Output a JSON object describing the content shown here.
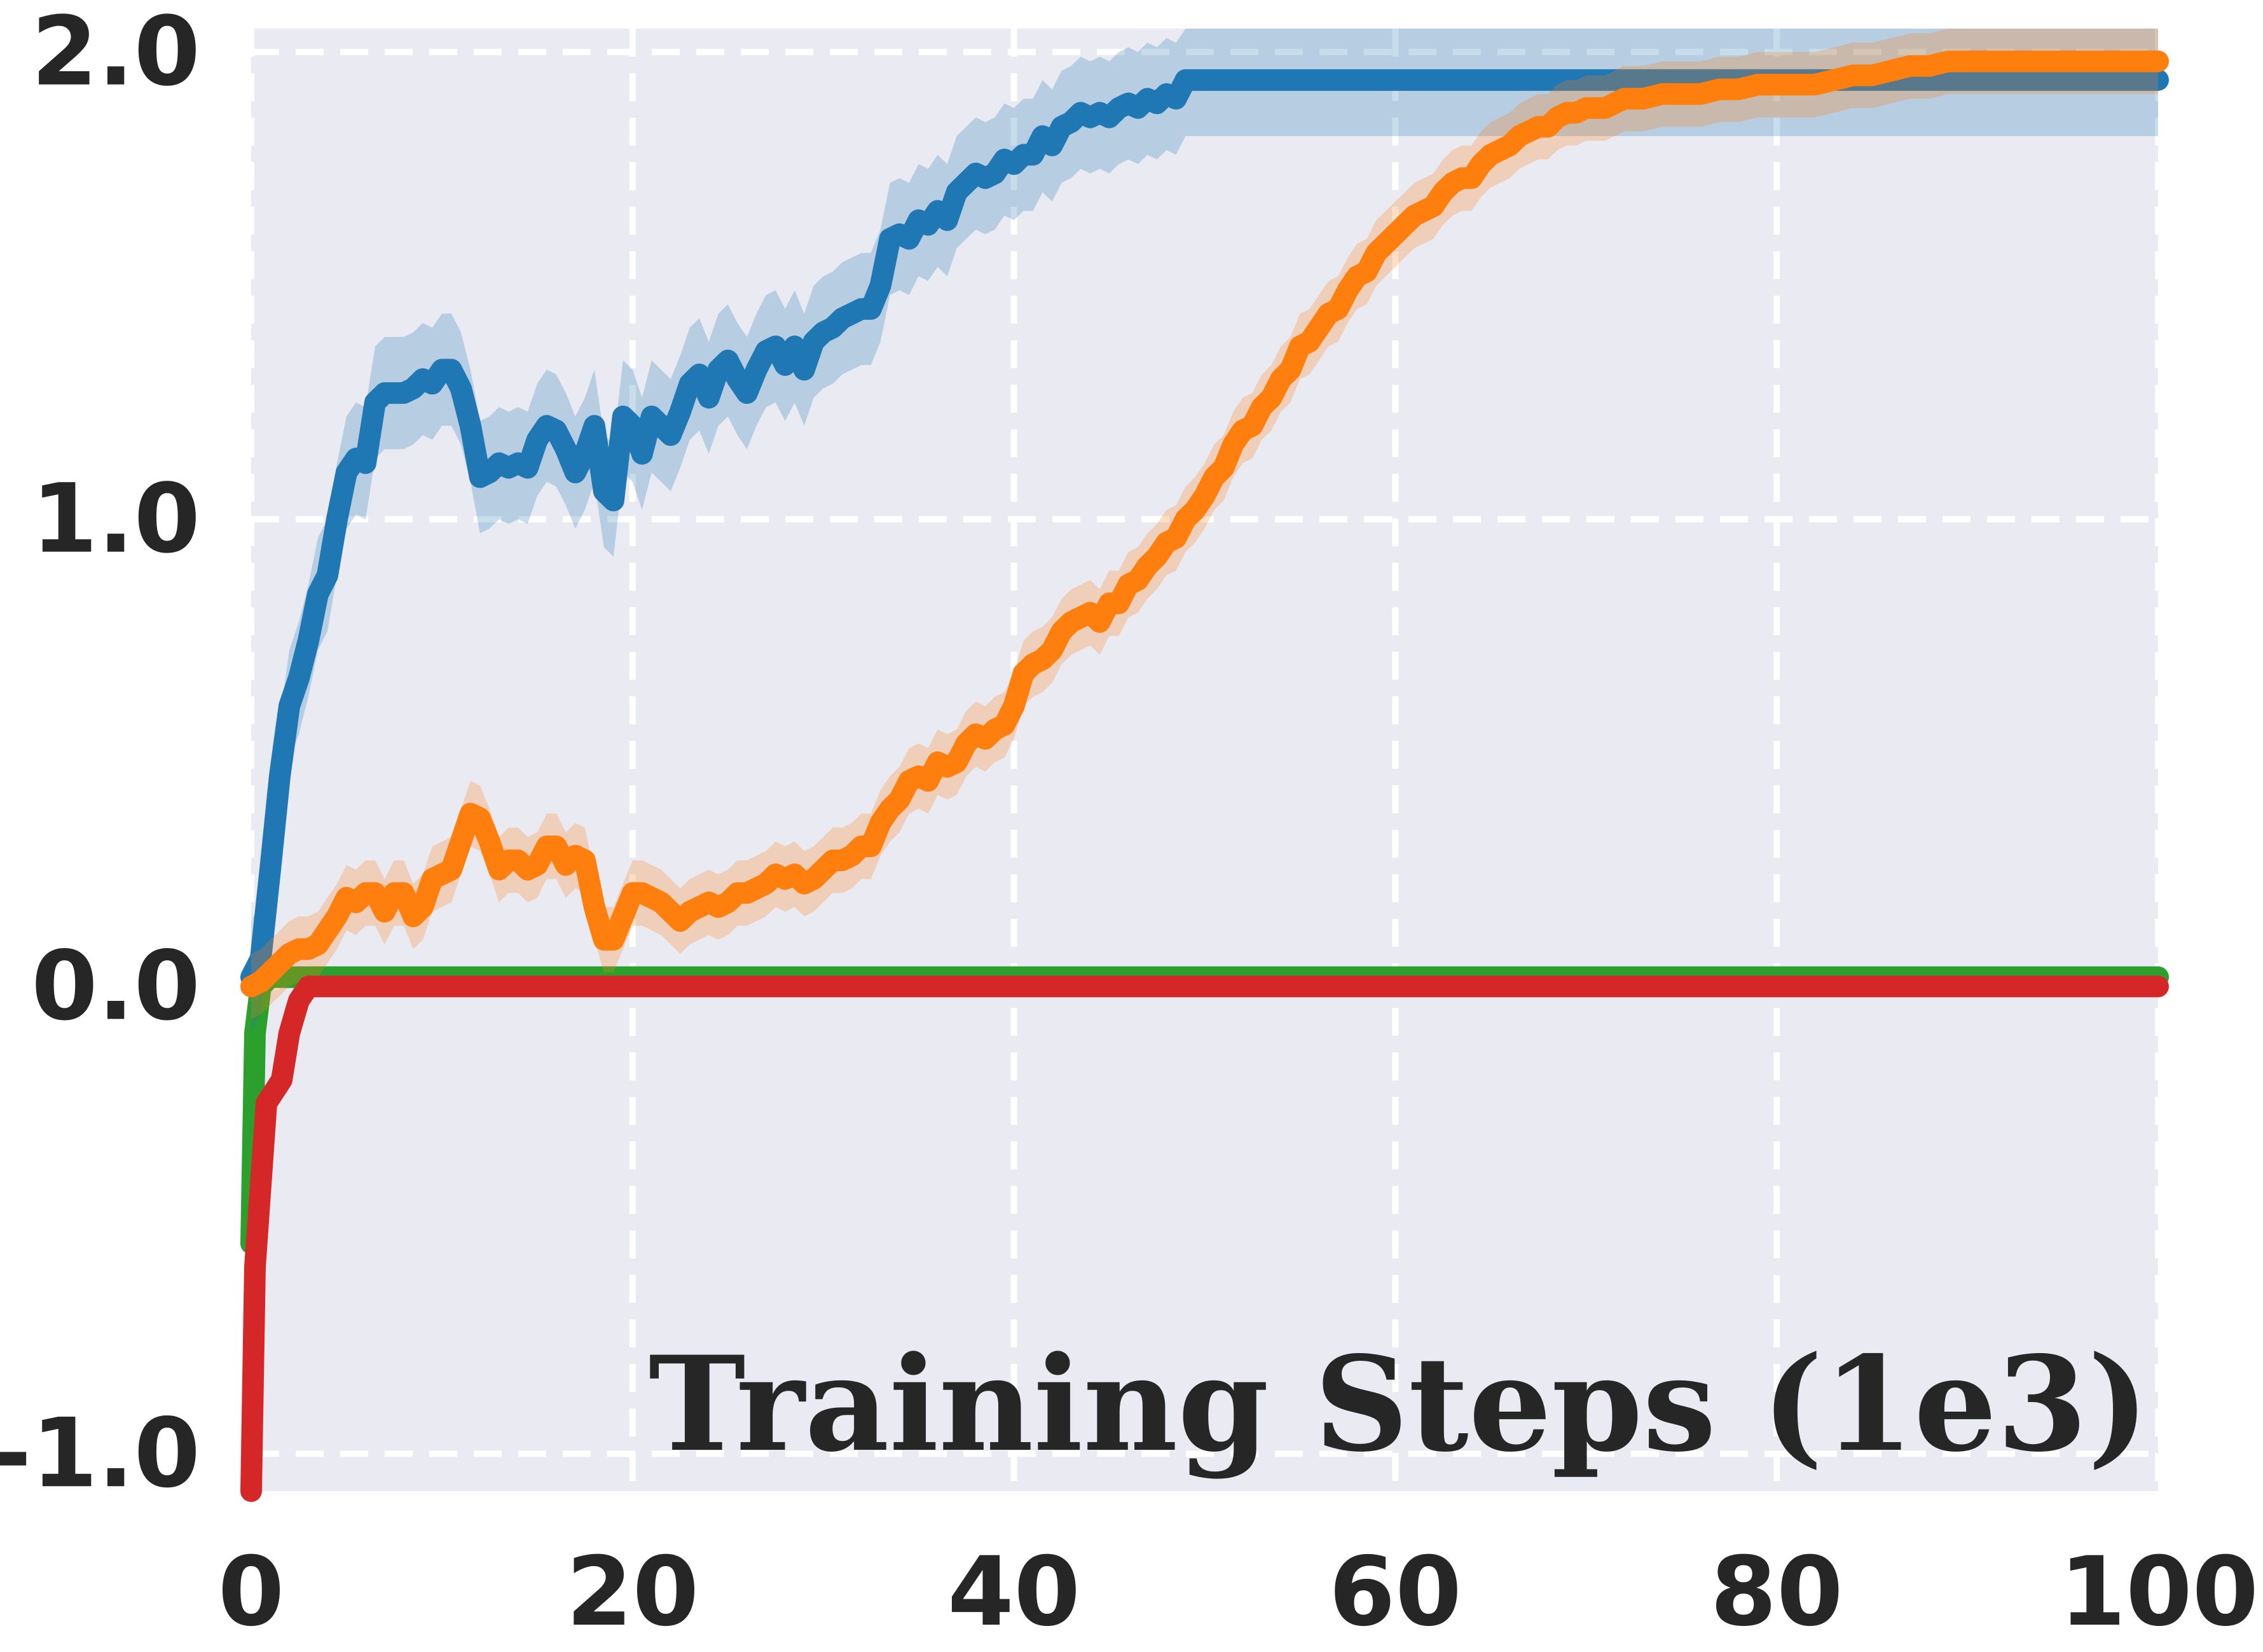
{
  "chart_data": {
    "type": "line",
    "title": "",
    "xlabel": "Training Steps (1e3)",
    "ylabel": "",
    "xlim": [
      0,
      100
    ],
    "ylim": [
      -1.08,
      2.05
    ],
    "x_ticks": [
      "0",
      "20",
      "40",
      "60",
      "80",
      "100"
    ],
    "y_ticks": [
      "-1.0",
      "0.0",
      "1.0",
      "2.0"
    ],
    "x_tick_values": [
      0,
      20,
      40,
      60,
      80,
      100
    ],
    "y_tick_values": [
      -1.0,
      0.0,
      1.0,
      2.0
    ],
    "grid": true,
    "background": "#eaeaf2",
    "grid_color": "#ffffff",
    "legend": "none",
    "series": [
      {
        "color": "#1f77b4",
        "band": 0.12,
        "points": [
          [
            0,
            0.02
          ],
          [
            0.5,
            0.06
          ],
          [
            1,
            0.25
          ],
          [
            1.5,
            0.45
          ],
          [
            2,
            0.6
          ],
          [
            2.5,
            0.66
          ],
          [
            3,
            0.74
          ],
          [
            3.5,
            0.84
          ],
          [
            4,
            0.88
          ],
          [
            4.5,
            1.0
          ],
          [
            5,
            1.1
          ],
          [
            5.5,
            1.13
          ],
          [
            6,
            1.12
          ],
          [
            6.5,
            1.25
          ],
          [
            7,
            1.27
          ],
          [
            7.5,
            1.27
          ],
          [
            8,
            1.27
          ],
          [
            8.5,
            1.28
          ],
          [
            9,
            1.3
          ],
          [
            9.5,
            1.29
          ],
          [
            10,
            1.32
          ],
          [
            10.5,
            1.32
          ],
          [
            11,
            1.28
          ],
          [
            11.5,
            1.2
          ],
          [
            12,
            1.09
          ],
          [
            12.5,
            1.1
          ],
          [
            13,
            1.12
          ],
          [
            13.5,
            1.11
          ],
          [
            14,
            1.12
          ],
          [
            14.5,
            1.11
          ],
          [
            15,
            1.17
          ],
          [
            15.5,
            1.2
          ],
          [
            16,
            1.19
          ],
          [
            16.5,
            1.15
          ],
          [
            17,
            1.1
          ],
          [
            17.5,
            1.14
          ],
          [
            18,
            1.2
          ],
          [
            18.5,
            1.06
          ],
          [
            19,
            1.04
          ],
          [
            19.5,
            1.22
          ],
          [
            20,
            1.2
          ],
          [
            20.5,
            1.14
          ],
          [
            21,
            1.22
          ],
          [
            21.5,
            1.2
          ],
          [
            22,
            1.18
          ],
          [
            22.5,
            1.23
          ],
          [
            23,
            1.29
          ],
          [
            23.5,
            1.31
          ],
          [
            24,
            1.26
          ],
          [
            24.5,
            1.32
          ],
          [
            25,
            1.34
          ],
          [
            25.5,
            1.3
          ],
          [
            26,
            1.27
          ],
          [
            26.5,
            1.32
          ],
          [
            27,
            1.36
          ],
          [
            27.5,
            1.37
          ],
          [
            28,
            1.33
          ],
          [
            28.5,
            1.37
          ],
          [
            29,
            1.32
          ],
          [
            29.5,
            1.38
          ],
          [
            30,
            1.4
          ],
          [
            30.5,
            1.41
          ],
          [
            31,
            1.43
          ],
          [
            31.5,
            1.44
          ],
          [
            32,
            1.45
          ],
          [
            32.5,
            1.45
          ],
          [
            33,
            1.5
          ],
          [
            33.5,
            1.6
          ],
          [
            34,
            1.61
          ],
          [
            34.5,
            1.6
          ],
          [
            35,
            1.64
          ],
          [
            35.5,
            1.63
          ],
          [
            36,
            1.66
          ],
          [
            36.5,
            1.64
          ],
          [
            37,
            1.7
          ],
          [
            37.5,
            1.72
          ],
          [
            38,
            1.74
          ],
          [
            38.5,
            1.73
          ],
          [
            39,
            1.74
          ],
          [
            39.5,
            1.77
          ],
          [
            40,
            1.76
          ],
          [
            40.5,
            1.78
          ],
          [
            41,
            1.78
          ],
          [
            41.5,
            1.82
          ],
          [
            42,
            1.8
          ],
          [
            42.5,
            1.84
          ],
          [
            43,
            1.85
          ],
          [
            43.5,
            1.87
          ],
          [
            44,
            1.86
          ],
          [
            44.5,
            1.87
          ],
          [
            45,
            1.86
          ],
          [
            45.5,
            1.88
          ],
          [
            46,
            1.89
          ],
          [
            46.5,
            1.88
          ],
          [
            47,
            1.9
          ],
          [
            47.5,
            1.89
          ],
          [
            48,
            1.91
          ],
          [
            48.5,
            1.9
          ],
          [
            49,
            1.94
          ],
          [
            60,
            1.94
          ],
          [
            70,
            1.94
          ],
          [
            80,
            1.94
          ],
          [
            90,
            1.94
          ],
          [
            100,
            1.94
          ]
        ]
      },
      {
        "color": "#ff7f0e",
        "band": 0.07,
        "points": [
          [
            0,
            0.0
          ],
          [
            0.5,
            0.01
          ],
          [
            1,
            0.03
          ],
          [
            1.5,
            0.05
          ],
          [
            2,
            0.07
          ],
          [
            2.5,
            0.08
          ],
          [
            3,
            0.08
          ],
          [
            3.5,
            0.09
          ],
          [
            4,
            0.12
          ],
          [
            4.5,
            0.15
          ],
          [
            5,
            0.19
          ],
          [
            5.5,
            0.18
          ],
          [
            6,
            0.2
          ],
          [
            6.5,
            0.2
          ],
          [
            7,
            0.16
          ],
          [
            7.5,
            0.2
          ],
          [
            8,
            0.2
          ],
          [
            8.5,
            0.15
          ],
          [
            9,
            0.17
          ],
          [
            9.5,
            0.23
          ],
          [
            10,
            0.24
          ],
          [
            10.5,
            0.25
          ],
          [
            11,
            0.31
          ],
          [
            11.5,
            0.37
          ],
          [
            12,
            0.36
          ],
          [
            12.5,
            0.31
          ],
          [
            13,
            0.25
          ],
          [
            13.5,
            0.27
          ],
          [
            14,
            0.27
          ],
          [
            14.5,
            0.25
          ],
          [
            15,
            0.26
          ],
          [
            15.5,
            0.3
          ],
          [
            16,
            0.3
          ],
          [
            16.5,
            0.26
          ],
          [
            17,
            0.28
          ],
          [
            17.5,
            0.27
          ],
          [
            18,
            0.17
          ],
          [
            18.5,
            0.1
          ],
          [
            19,
            0.1
          ],
          [
            19.5,
            0.15
          ],
          [
            20,
            0.2
          ],
          [
            20.5,
            0.2
          ],
          [
            21,
            0.19
          ],
          [
            21.5,
            0.18
          ],
          [
            22,
            0.16
          ],
          [
            22.5,
            0.14
          ],
          [
            23,
            0.16
          ],
          [
            23.5,
            0.17
          ],
          [
            24,
            0.18
          ],
          [
            24.5,
            0.17
          ],
          [
            25,
            0.18
          ],
          [
            25.5,
            0.2
          ],
          [
            26,
            0.2
          ],
          [
            26.5,
            0.21
          ],
          [
            27,
            0.22
          ],
          [
            27.5,
            0.24
          ],
          [
            28,
            0.23
          ],
          [
            28.5,
            0.24
          ],
          [
            29,
            0.22
          ],
          [
            29.5,
            0.23
          ],
          [
            30,
            0.25
          ],
          [
            30.5,
            0.27
          ],
          [
            31,
            0.27
          ],
          [
            31.5,
            0.28
          ],
          [
            32,
            0.3
          ],
          [
            32.5,
            0.3
          ],
          [
            33,
            0.35
          ],
          [
            33.5,
            0.38
          ],
          [
            34,
            0.4
          ],
          [
            34.5,
            0.44
          ],
          [
            35,
            0.45
          ],
          [
            35.5,
            0.44
          ],
          [
            36,
            0.48
          ],
          [
            36.5,
            0.47
          ],
          [
            37,
            0.48
          ],
          [
            37.5,
            0.52
          ],
          [
            38,
            0.54
          ],
          [
            38.5,
            0.53
          ],
          [
            39,
            0.55
          ],
          [
            39.5,
            0.56
          ],
          [
            40,
            0.6
          ],
          [
            40.5,
            0.67
          ],
          [
            41,
            0.69
          ],
          [
            41.5,
            0.7
          ],
          [
            42,
            0.72
          ],
          [
            42.5,
            0.76
          ],
          [
            43,
            0.78
          ],
          [
            43.5,
            0.79
          ],
          [
            44,
            0.8
          ],
          [
            44.5,
            0.78
          ],
          [
            45,
            0.82
          ],
          [
            45.5,
            0.82
          ],
          [
            46,
            0.86
          ],
          [
            46.5,
            0.87
          ],
          [
            47,
            0.9
          ],
          [
            47.5,
            0.92
          ],
          [
            48,
            0.95
          ],
          [
            48.5,
            0.96
          ],
          [
            49,
            1.0
          ],
          [
            49.5,
            1.02
          ],
          [
            50,
            1.05
          ],
          [
            50.5,
            1.09
          ],
          [
            51,
            1.11
          ],
          [
            51.5,
            1.16
          ],
          [
            52,
            1.19
          ],
          [
            52.5,
            1.2
          ],
          [
            53,
            1.24
          ],
          [
            53.5,
            1.26
          ],
          [
            54,
            1.3
          ],
          [
            54.5,
            1.32
          ],
          [
            55,
            1.37
          ],
          [
            55.5,
            1.38
          ],
          [
            56,
            1.41
          ],
          [
            56.5,
            1.44
          ],
          [
            57,
            1.45
          ],
          [
            57.5,
            1.49
          ],
          [
            58,
            1.52
          ],
          [
            58.5,
            1.53
          ],
          [
            59,
            1.57
          ],
          [
            59.5,
            1.59
          ],
          [
            60,
            1.61
          ],
          [
            60.5,
            1.63
          ],
          [
            61,
            1.65
          ],
          [
            61.5,
            1.66
          ],
          [
            62,
            1.67
          ],
          [
            62.5,
            1.7
          ],
          [
            63,
            1.72
          ],
          [
            63.5,
            1.73
          ],
          [
            64,
            1.73
          ],
          [
            64.5,
            1.76
          ],
          [
            65,
            1.78
          ],
          [
            65.5,
            1.79
          ],
          [
            66,
            1.8
          ],
          [
            66.5,
            1.82
          ],
          [
            67,
            1.83
          ],
          [
            67.5,
            1.84
          ],
          [
            68,
            1.84
          ],
          [
            68.5,
            1.86
          ],
          [
            69,
            1.87
          ],
          [
            69.5,
            1.87
          ],
          [
            70,
            1.88
          ],
          [
            71,
            1.88
          ],
          [
            72,
            1.9
          ],
          [
            73,
            1.9
          ],
          [
            74,
            1.91
          ],
          [
            75,
            1.91
          ],
          [
            76,
            1.91
          ],
          [
            77,
            1.92
          ],
          [
            78,
            1.92
          ],
          [
            79,
            1.93
          ],
          [
            80,
            1.93
          ],
          [
            81,
            1.93
          ],
          [
            82,
            1.93
          ],
          [
            83,
            1.94
          ],
          [
            84,
            1.95
          ],
          [
            85,
            1.95
          ],
          [
            86,
            1.96
          ],
          [
            87,
            1.97
          ],
          [
            88,
            1.97
          ],
          [
            89,
            1.98
          ],
          [
            90,
            1.98
          ],
          [
            95,
            1.98
          ],
          [
            100,
            1.98
          ]
        ]
      },
      {
        "color": "#2ca02c",
        "band": 0.0,
        "points": [
          [
            0,
            -0.55
          ],
          [
            0.2,
            -0.1
          ],
          [
            0.5,
            0.0
          ],
          [
            1,
            0.02
          ],
          [
            100,
            0.02
          ]
        ]
      },
      {
        "color": "#d62728",
        "band": 0.0,
        "points": [
          [
            0,
            -1.08
          ],
          [
            0.2,
            -0.6
          ],
          [
            0.8,
            -0.25
          ],
          [
            1.6,
            -0.2
          ],
          [
            2,
            -0.1
          ],
          [
            2.5,
            -0.03
          ],
          [
            3,
            0.0
          ],
          [
            4,
            0.0
          ],
          [
            100,
            0.0
          ]
        ]
      }
    ]
  }
}
